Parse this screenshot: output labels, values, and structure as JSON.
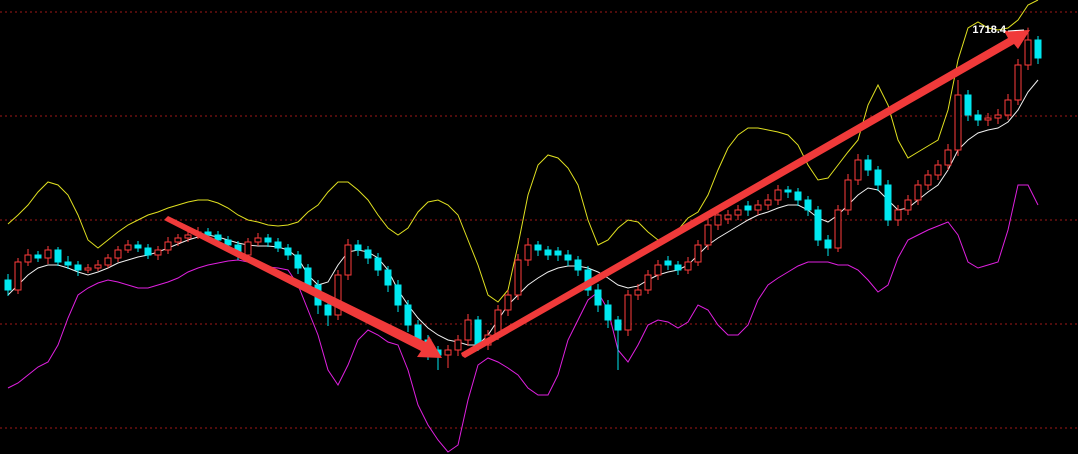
{
  "chart_data": {
    "type": "candlestick",
    "open": [
      1466,
      1456,
      1484,
      1491,
      1488,
      1496,
      1484,
      1481,
      1476,
      1478,
      1481,
      1488,
      1496,
      1501,
      1498,
      1491,
      1496,
      1504,
      1508,
      1511,
      1514,
      1511,
      1506,
      1501,
      1491,
      1504,
      1508,
      1504,
      1498,
      1491,
      1478,
      1461,
      1441,
      1431,
      1471,
      1501,
      1496,
      1488,
      1476,
      1461,
      1441,
      1421,
      1406,
      1396,
      1391,
      1396,
      1406,
      1426,
      1401,
      1411,
      1436,
      1451,
      1486,
      1501,
      1496,
      1495,
      1491,
      1486,
      1476,
      1456,
      1441,
      1426,
      1416,
      1451,
      1456,
      1471,
      1485,
      1481,
      1476,
      1484,
      1501,
      1521,
      1527,
      1531,
      1540,
      1536,
      1541,
      1546,
      1556,
      1554,
      1546,
      1536,
      1506,
      1498,
      1536,
      1566,
      1586,
      1576,
      1561,
      1526,
      1536,
      1546,
      1561,
      1571,
      1581,
      1596,
      1651,
      1631,
      1626,
      1628,
      1631,
      1646,
      1681,
      1706
    ],
    "high": [
      1472,
      1488,
      1497,
      1495,
      1500,
      1499,
      1490,
      1485,
      1482,
      1486,
      1492,
      1500,
      1506,
      1505,
      1502,
      1500,
      1509,
      1512,
      1516,
      1519,
      1518,
      1515,
      1510,
      1505,
      1508,
      1513,
      1512,
      1508,
      1502,
      1495,
      1482,
      1466,
      1446,
      1476,
      1507,
      1506,
      1500,
      1493,
      1480,
      1466,
      1446,
      1426,
      1411,
      1400,
      1401,
      1411,
      1432,
      1430,
      1416,
      1441,
      1456,
      1492,
      1508,
      1505,
      1500,
      1499,
      1496,
      1490,
      1480,
      1462,
      1446,
      1430,
      1456,
      1462,
      1476,
      1486,
      1490,
      1485,
      1489,
      1506,
      1527,
      1536,
      1536,
      1541,
      1545,
      1546,
      1552,
      1561,
      1560,
      1558,
      1550,
      1540,
      1511,
      1541,
      1572,
      1592,
      1591,
      1580,
      1566,
      1541,
      1551,
      1566,
      1576,
      1586,
      1602,
      1666,
      1656,
      1636,
      1633,
      1637,
      1652,
      1687,
      1718.4,
      1710
    ],
    "low": [
      1450,
      1452,
      1480,
      1484,
      1482,
      1480,
      1477,
      1470,
      1473,
      1475,
      1478,
      1484,
      1493,
      1494,
      1487,
      1486,
      1492,
      1500,
      1504,
      1507,
      1506,
      1502,
      1496,
      1486,
      1488,
      1500,
      1499,
      1494,
      1486,
      1472,
      1455,
      1432,
      1420,
      1426,
      1466,
      1490,
      1482,
      1470,
      1454,
      1434,
      1414,
      1398,
      1386,
      1376,
      1378,
      1390,
      1400,
      1395,
      1396,
      1406,
      1430,
      1446,
      1480,
      1490,
      1486,
      1485,
      1480,
      1470,
      1450,
      1434,
      1418,
      1376,
      1410,
      1446,
      1452,
      1466,
      1476,
      1471,
      1472,
      1480,
      1496,
      1516,
      1522,
      1526,
      1530,
      1531,
      1536,
      1541,
      1548,
      1540,
      1530,
      1500,
      1490,
      1494,
      1531,
      1561,
      1570,
      1555,
      1520,
      1520,
      1531,
      1541,
      1556,
      1566,
      1576,
      1590,
      1625,
      1620,
      1620,
      1622,
      1626,
      1641,
      1676,
      1682
    ],
    "close": [
      1456,
      1484,
      1491,
      1488,
      1496,
      1484,
      1481,
      1476,
      1478,
      1481,
      1488,
      1496,
      1501,
      1498,
      1491,
      1496,
      1504,
      1508,
      1511,
      1514,
      1511,
      1506,
      1501,
      1491,
      1504,
      1508,
      1504,
      1498,
      1491,
      1478,
      1461,
      1441,
      1431,
      1471,
      1501,
      1496,
      1488,
      1476,
      1461,
      1441,
      1421,
      1406,
      1396,
      1391,
      1396,
      1406,
      1426,
      1401,
      1411,
      1436,
      1451,
      1486,
      1501,
      1496,
      1491,
      1491,
      1486,
      1476,
      1456,
      1441,
      1426,
      1416,
      1451,
      1456,
      1471,
      1481,
      1481,
      1476,
      1484,
      1501,
      1521,
      1531,
      1531,
      1536,
      1536,
      1541,
      1546,
      1556,
      1554,
      1546,
      1536,
      1506,
      1498,
      1536,
      1566,
      1586,
      1576,
      1561,
      1526,
      1536,
      1546,
      1561,
      1571,
      1581,
      1596,
      1651,
      1631,
      1626,
      1628,
      1631,
      1646,
      1681,
      1706,
      1688
    ],
    "bands": [
      {
        "color": "#e0e020",
        "values": [
          1522,
          1531,
          1541,
          1554,
          1564,
          1561,
          1551,
          1531,
          1506,
          1498,
          1506,
          1514,
          1521,
          1526,
          1531,
          1534,
          1538,
          1541,
          1544,
          1546,
          1546,
          1543,
          1538,
          1531,
          1526,
          1524,
          1521,
          1520,
          1521,
          1524,
          1534,
          1541,
          1554,
          1564,
          1564,
          1556,
          1546,
          1531,
          1518,
          1511,
          1518,
          1534,
          1544,
          1546,
          1541,
          1531,
          1506,
          1481,
          1451,
          1444,
          1456,
          1501,
          1551,
          1581,
          1591,
          1588,
          1578,
          1561,
          1526,
          1501,
          1506,
          1518,
          1526,
          1524,
          1514,
          1506,
          1508,
          1516,
          1528,
          1534,
          1551,
          1576,
          1598,
          1611,
          1618,
          1618,
          1616,
          1614,
          1611,
          1601,
          1581,
          1566,
          1568,
          1581,
          1594,
          1606,
          1641,
          1661,
          1641,
          1606,
          1588,
          1594,
          1600,
          1606,
          1636,
          1686,
          1718,
          1724,
          1718,
          1716,
          1718,
          1726,
          1741,
          1746
        ]
      },
      {
        "color": "#f0f0f0",
        "values": [
          1451,
          1461,
          1471,
          1478,
          1481,
          1481,
          1478,
          1474,
          1471,
          1474,
          1478,
          1483,
          1486,
          1489,
          1491,
          1494,
          1498,
          1502,
          1506,
          1509,
          1511,
          1509,
          1506,
          1503,
          1501,
          1500,
          1500,
          1499,
          1496,
          1488,
          1471,
          1461,
          1464,
          1481,
          1494,
          1496,
          1494,
          1488,
          1476,
          1456,
          1441,
          1428,
          1418,
          1411,
          1406,
          1404,
          1401,
          1401,
          1411,
          1426,
          1441,
          1451,
          1461,
          1468,
          1474,
          1478,
          1480,
          1480,
          1478,
          1474,
          1468,
          1461,
          1458,
          1460,
          1466,
          1471,
          1474,
          1476,
          1481,
          1491,
          1501,
          1508,
          1514,
          1520,
          1526,
          1531,
          1534,
          1538,
          1541,
          1541,
          1536,
          1528,
          1524,
          1531,
          1541,
          1551,
          1558,
          1556,
          1546,
          1536,
          1538,
          1546,
          1554,
          1561,
          1576,
          1596,
          1606,
          1613,
          1616,
          1618,
          1624,
          1636,
          1654,
          1666
        ]
      },
      {
        "color": "#e020e0",
        "values": [
          1358,
          1363,
          1371,
          1379,
          1384,
          1401,
          1428,
          1451,
          1458,
          1463,
          1466,
          1464,
          1461,
          1458,
          1458,
          1461,
          1464,
          1468,
          1474,
          1478,
          1481,
          1483,
          1485,
          1486,
          1484,
          1481,
          1479,
          1478,
          1476,
          1461,
          1436,
          1411,
          1376,
          1361,
          1381,
          1406,
          1416,
          1411,
          1404,
          1401,
          1376,
          1341,
          1321,
          1306,
          1294,
          1301,
          1346,
          1381,
          1388,
          1384,
          1378,
          1371,
          1358,
          1351,
          1351,
          1371,
          1406,
          1426,
          1446,
          1454,
          1436,
          1396,
          1384,
          1401,
          1421,
          1426,
          1424,
          1418,
          1424,
          1441,
          1436,
          1421,
          1411,
          1411,
          1421,
          1446,
          1461,
          1468,
          1474,
          1480,
          1484,
          1484,
          1484,
          1481,
          1481,
          1476,
          1466,
          1454,
          1461,
          1488,
          1506,
          1511,
          1516,
          1520,
          1524,
          1511,
          1484,
          1478,
          1481,
          1484,
          1516,
          1561,
          1561,
          1541
        ]
      }
    ],
    "up_color": "#ff3b3b",
    "down_color": "#00e8f0",
    "ylim": [
      1292,
      1746
    ]
  }
}
